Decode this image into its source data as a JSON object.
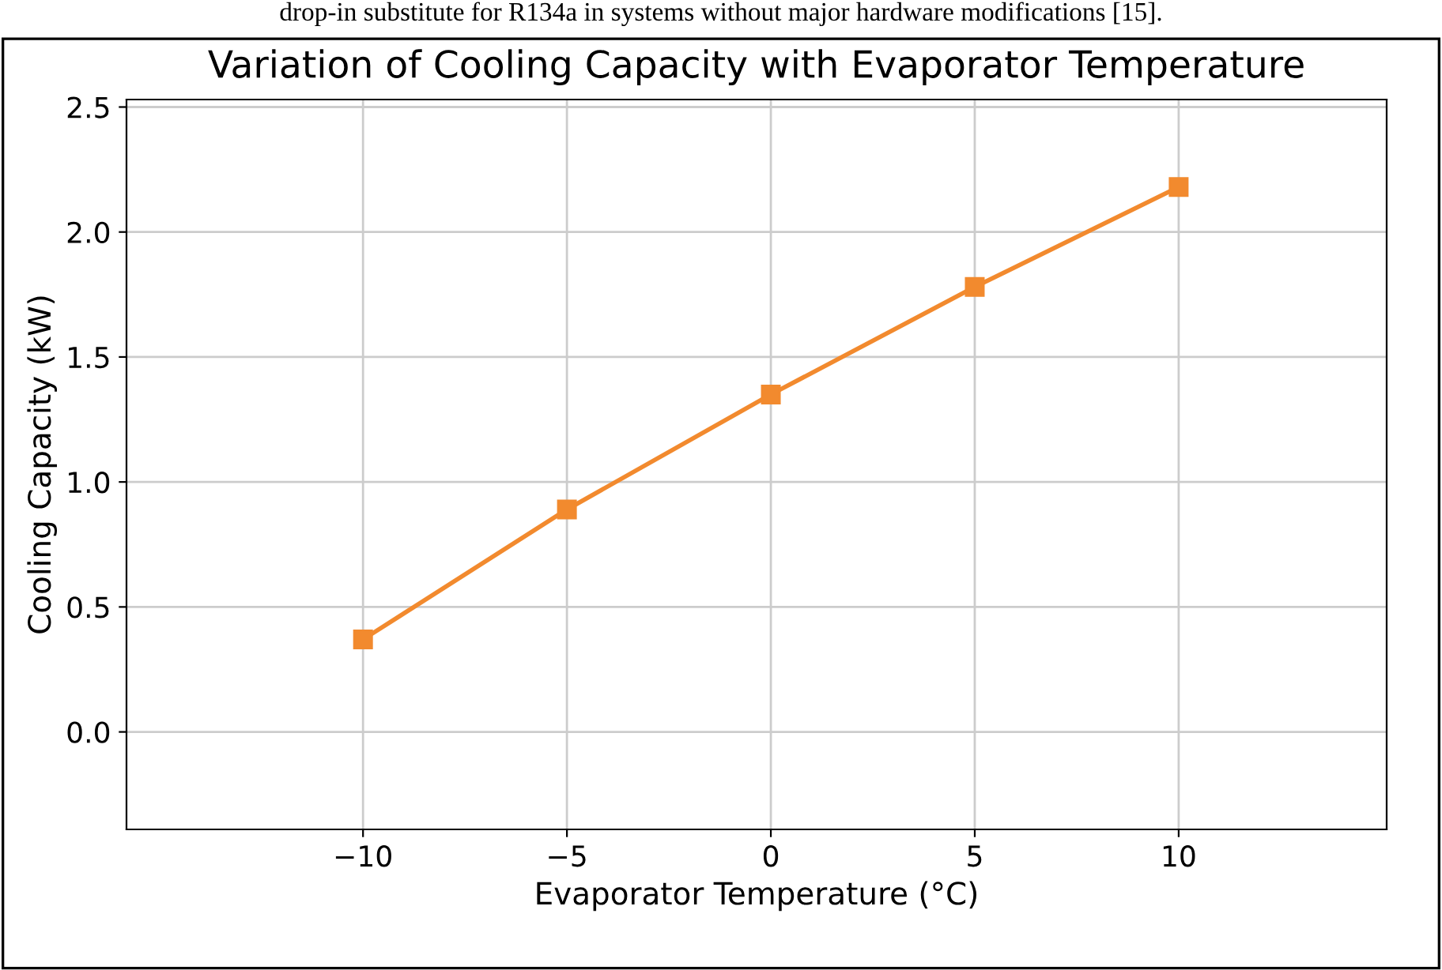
{
  "chart_data": {
    "type": "line",
    "title": "Variation of Cooling Capacity with Evaporator Temperature",
    "xlabel": "Evaporator Temperature (°C)",
    "ylabel": "Cooling Capacity (kW)",
    "annotations": [
      "drop-in substitute for R134a in systems without major hardware modifications [15]."
    ],
    "x": [
      -10,
      -5,
      0,
      5,
      10
    ],
    "series": [
      {
        "color": "#f28a2e",
        "values": [
          0.37,
          0.89,
          1.35,
          1.78,
          2.18
        ]
      }
    ],
    "xlim": [
      -15.8,
      15.1
    ],
    "xticks": [
      {
        "value": -10,
        "label": "−10"
      },
      {
        "value": -5,
        "label": "−5"
      },
      0,
      5,
      10
    ],
    "ylim": [
      -0.39,
      2.53
    ],
    "yticks": [
      {
        "value": 0,
        "label": "0.0"
      },
      0.5,
      {
        "value": 1,
        "label": "1.0"
      },
      1.5,
      {
        "value": 2,
        "label": "2.0"
      },
      2.5
    ],
    "grid": true,
    "marker": "square",
    "line_style": "solid"
  }
}
